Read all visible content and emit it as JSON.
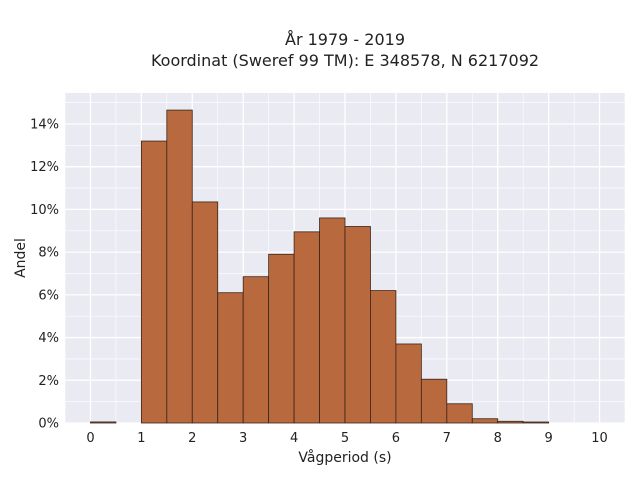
{
  "chart_data": {
    "type": "bar",
    "title_lines": [
      "År 1979 - 2019",
      "Koordinat (Sweref 99 TM): E 348578, N 6217092"
    ],
    "xlabel": "Vågperiod (s)",
    "ylabel": "Andel",
    "xlim": [
      -0.5,
      10.5
    ],
    "ylim": [
      0,
      0.1545
    ],
    "x_ticks": [
      0,
      1,
      2,
      3,
      4,
      5,
      6,
      7,
      8,
      9,
      10
    ],
    "x_tick_labels": [
      "0",
      "1",
      "2",
      "3",
      "4",
      "5",
      "6",
      "7",
      "8",
      "9",
      "10"
    ],
    "y_ticks": [
      0,
      0.02,
      0.04,
      0.06,
      0.08,
      0.1,
      0.12,
      0.14
    ],
    "y_tick_labels": [
      "0%",
      "2%",
      "4%",
      "6%",
      "8%",
      "10%",
      "12%",
      "14%"
    ],
    "bin_width": 0.5,
    "bins": [
      {
        "x0": 0.0,
        "value": 0.0005
      },
      {
        "x0": 0.5,
        "value": 0.0
      },
      {
        "x0": 1.0,
        "value": 0.132
      },
      {
        "x0": 1.5,
        "value": 0.1465
      },
      {
        "x0": 2.0,
        "value": 0.1035
      },
      {
        "x0": 2.5,
        "value": 0.061
      },
      {
        "x0": 3.0,
        "value": 0.0685
      },
      {
        "x0": 3.5,
        "value": 0.079
      },
      {
        "x0": 4.0,
        "value": 0.0895
      },
      {
        "x0": 4.5,
        "value": 0.096
      },
      {
        "x0": 5.0,
        "value": 0.092
      },
      {
        "x0": 5.5,
        "value": 0.062
      },
      {
        "x0": 6.0,
        "value": 0.037
      },
      {
        "x0": 6.5,
        "value": 0.0205
      },
      {
        "x0": 7.0,
        "value": 0.009
      },
      {
        "x0": 7.5,
        "value": 0.002
      },
      {
        "x0": 8.0,
        "value": 0.0008
      },
      {
        "x0": 8.5,
        "value": 0.0003
      }
    ],
    "grid": true,
    "colors": {
      "background": "#eaeaf2",
      "grid": "#ffffff",
      "bar_fill": "#b8693e",
      "bar_edge": "#3a2418",
      "text": "#222222"
    }
  }
}
